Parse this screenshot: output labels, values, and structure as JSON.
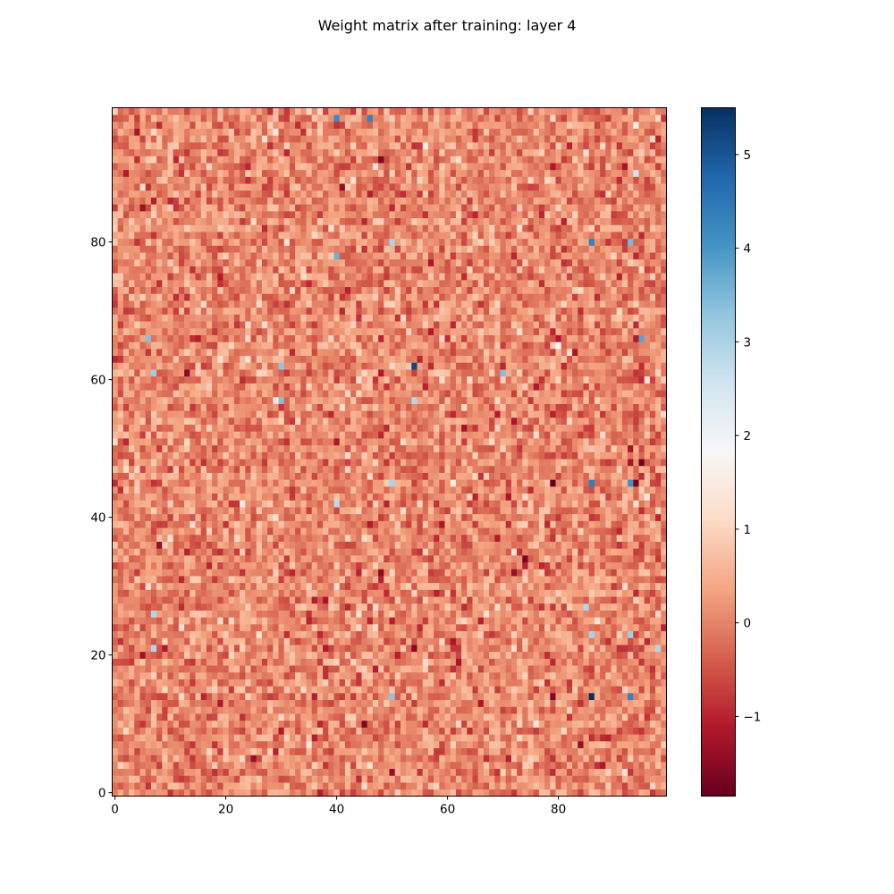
{
  "chart_data": {
    "type": "heatmap",
    "title": "Weight matrix after training: layer 4",
    "xlabel": "",
    "ylabel": "",
    "rows": 100,
    "cols": 100,
    "origin": "lower",
    "colormap": "RdBu",
    "value_range": [
      -1.85,
      5.5
    ],
    "typical_distribution": {
      "mean": 0.05,
      "std": 0.42
    },
    "xlim": [
      -0.5,
      99.5
    ],
    "ylim": [
      -0.5,
      99.5
    ],
    "x_ticks": [
      0,
      20,
      40,
      60,
      80
    ],
    "y_ticks": [
      0,
      20,
      40,
      60,
      80
    ],
    "colorbar": {
      "ticks": [
        -1,
        0,
        1,
        2,
        3,
        4,
        5
      ],
      "tick_labels": [
        "−1",
        "0",
        "1",
        "2",
        "3",
        "4",
        "5"
      ],
      "placement": "right"
    },
    "grid": false,
    "notable_values": [
      {
        "row": 98,
        "col": 40,
        "value": 4.2
      },
      {
        "row": 98,
        "col": 46,
        "value": 4.3
      },
      {
        "row": 80,
        "col": 50,
        "value": 3.0
      },
      {
        "row": 80,
        "col": 86,
        "value": 4.3
      },
      {
        "row": 80,
        "col": 93,
        "value": 3.5
      },
      {
        "row": 78,
        "col": 40,
        "value": 3.6
      },
      {
        "row": 66,
        "col": 6,
        "value": 3.4
      },
      {
        "row": 66,
        "col": 95,
        "value": 3.8
      },
      {
        "row": 62,
        "col": 30,
        "value": 3.3
      },
      {
        "row": 62,
        "col": 54,
        "value": 5.2
      },
      {
        "row": 61,
        "col": 7,
        "value": 3.1
      },
      {
        "row": 61,
        "col": 70,
        "value": 3.4
      },
      {
        "row": 57,
        "col": 30,
        "value": 3.4
      },
      {
        "row": 57,
        "col": 54,
        "value": 2.9
      },
      {
        "row": 45,
        "col": 50,
        "value": 3.0
      },
      {
        "row": 45,
        "col": 86,
        "value": 4.4
      },
      {
        "row": 45,
        "col": 93,
        "value": 4.1
      },
      {
        "row": 42,
        "col": 40,
        "value": 2.8
      },
      {
        "row": 27,
        "col": 85,
        "value": 2.9
      },
      {
        "row": 23,
        "col": 86,
        "value": 3.0
      },
      {
        "row": 23,
        "col": 93,
        "value": 3.1
      },
      {
        "row": 21,
        "col": 7,
        "value": 2.9
      },
      {
        "row": 21,
        "col": 98,
        "value": 2.9
      },
      {
        "row": 14,
        "col": 50,
        "value": 3.3
      },
      {
        "row": 14,
        "col": 86,
        "value": 5.5
      },
      {
        "row": 14,
        "col": 93,
        "value": 4.3
      },
      {
        "row": 26,
        "col": 7,
        "value": 2.9
      },
      {
        "row": 90,
        "col": 94,
        "value": 2.6
      },
      {
        "row": 48,
        "col": 95,
        "value": -1.8
      },
      {
        "row": 45,
        "col": 79,
        "value": -1.85
      },
      {
        "row": 34,
        "col": 74,
        "value": -1.7
      },
      {
        "row": 92,
        "col": 48,
        "value": -1.6
      },
      {
        "row": 14,
        "col": 79,
        "value": -1.6
      },
      {
        "row": 32,
        "col": 48,
        "value": -1.5
      },
      {
        "row": 61,
        "col": 13,
        "value": -1.5
      },
      {
        "row": 7,
        "col": 84,
        "value": -1.4
      },
      {
        "row": 45,
        "col": 94,
        "value": -1.7
      }
    ]
  }
}
